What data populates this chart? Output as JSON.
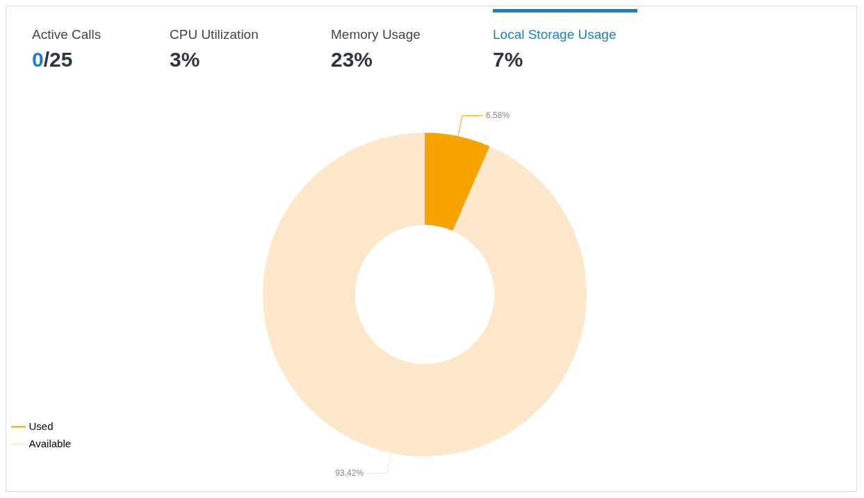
{
  "chart_data": [
    {
      "type": "other",
      "annotations": [
        "Active Calls",
        "0/25",
        "CPU Utilization",
        "3%",
        "Memory Usage",
        "23%",
        "Local Storage Usage",
        "7%"
      ]
    },
    {
      "type": "donut",
      "categories": [
        "Used",
        "Available"
      ],
      "values": [
        6.58,
        93.42
      ],
      "colors": [
        "#f7a300",
        "#fde8cb"
      ],
      "value_labels": [
        "6.58%",
        "93.42%"
      ],
      "legend": "bottom left"
    }
  ]
}
